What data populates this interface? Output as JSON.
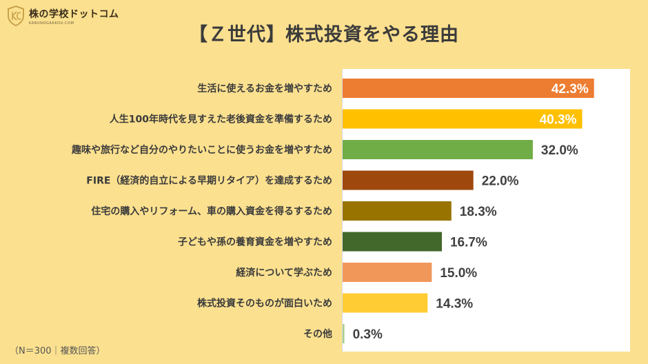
{
  "logo": {
    "name": "株の学校ドットコム",
    "sub": "KABUNOGAKKOU.COM"
  },
  "chart_data": {
    "type": "bar",
    "orientation": "horizontal",
    "title": "【Ｚ世代】株式投資をやる理由",
    "categories": [
      "生活に使えるお金を増やすため",
      "人生100年時代を見すえた老後資金を準備するため",
      "趣味や旅行など自分のやりたいことに使うお金を増やすため",
      "FIRE（経済的自立による早期リタイア）を達成するため",
      "住宅の購入やリフォーム、車の購入資金を得るするため",
      "子どもや孫の養育資金を増やすため",
      "経済について学ぶため",
      "株式投資そのものが面白いため",
      "その他"
    ],
    "values": [
      42.3,
      40.3,
      32.0,
      22.0,
      18.3,
      16.7,
      15.0,
      14.3,
      0.3
    ],
    "value_labels": [
      "42.3%",
      "40.3%",
      "32.0%",
      "22.0%",
      "18.3%",
      "16.7%",
      "15.0%",
      "14.3%",
      "0.3%"
    ],
    "colors": [
      "#ed7d31",
      "#ffc000",
      "#70ad47",
      "#9e480e",
      "#997300",
      "#43682b",
      "#f1975a",
      "#ffcd33",
      "#a9d18e"
    ],
    "label_inside": [
      true,
      true,
      false,
      false,
      false,
      false,
      false,
      false,
      false
    ],
    "xlim": [
      0,
      45
    ],
    "note": "（N＝300｜複数回答）"
  }
}
